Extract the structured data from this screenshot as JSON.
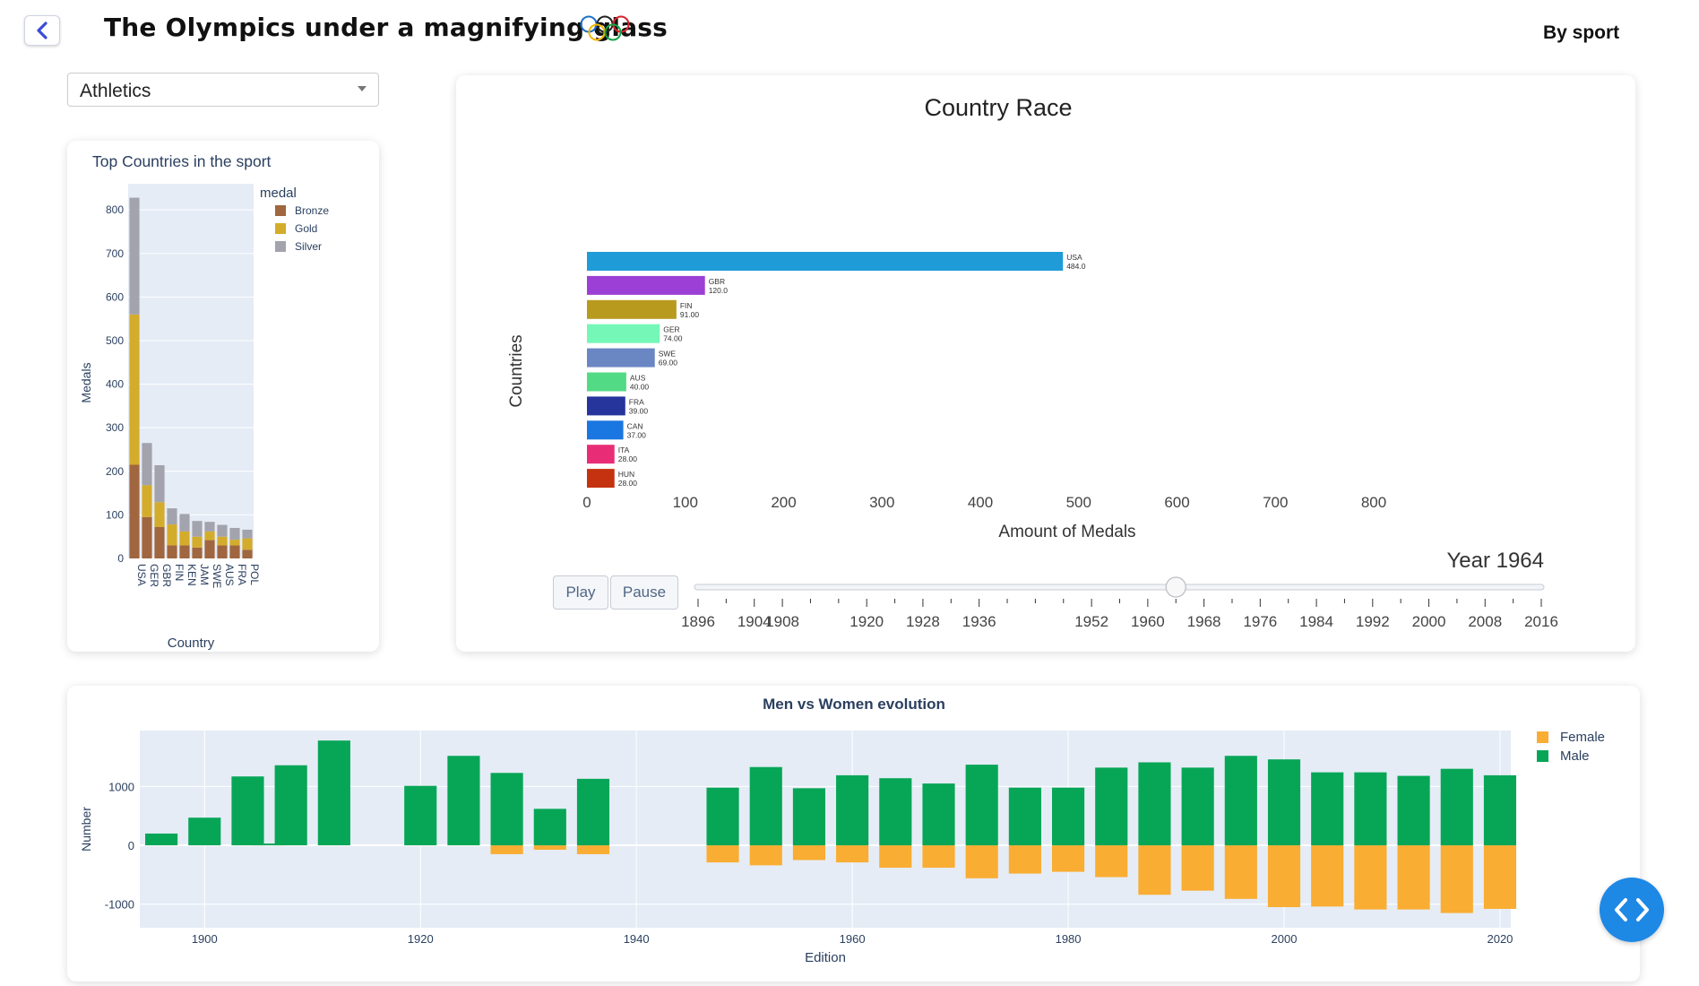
{
  "header": {
    "title": "The Olympics under a magnifying glass",
    "nav_label": "By sport",
    "back_icon": "chevron-left-icon",
    "logo_icon": "olympic-rings-icon"
  },
  "sport_select": {
    "value": "Athletics"
  },
  "top_countries": {
    "title": "Top Countries in the sport",
    "legend_title": "medal",
    "xlabel": "Country",
    "ylabel": "Medals",
    "y_ticks": [
      "0",
      "100",
      "200",
      "300",
      "400",
      "500",
      "600",
      "700",
      "800"
    ]
  },
  "race": {
    "title": "Country Race",
    "xlabel": "Amount of Medals",
    "ylabel": "Countries",
    "year_label": "Year 1964",
    "x_ticks": [
      "0",
      "100",
      "200",
      "300",
      "400",
      "500",
      "600",
      "700",
      "800"
    ],
    "play_label": "Play",
    "pause_label": "Pause",
    "slider_ticks": [
      "1896",
      "1904",
      "1908",
      "1920",
      "1928",
      "1936",
      "1952",
      "1960",
      "1968",
      "1976",
      "1984",
      "1992",
      "2000",
      "2008",
      "2016"
    ],
    "slider_value": "1964"
  },
  "gender": {
    "title": "Men vs Women evolution",
    "xlabel": "Edition",
    "ylabel": "Number",
    "y_ticks": [
      "1000",
      "0",
      "-1000"
    ],
    "x_ticks": [
      "1900",
      "1920",
      "1940",
      "1960",
      "1980",
      "2000",
      "2020"
    ]
  },
  "fab_icon": "code-icon",
  "colors": {
    "plot_bg": "#e5ecf6",
    "bronze": "#a0663f",
    "gold": "#d4ac2b",
    "silver": "#a3a3ad",
    "female": "#f9ad32",
    "male": "#07a657",
    "accent": "#1e88e5"
  },
  "chart_data": [
    {
      "type": "bar",
      "title": "Top Countries in the sport",
      "xlabel": "Country",
      "ylabel": "Medals",
      "ylim": [
        0,
        860
      ],
      "legend_title": "medal",
      "categories": [
        "USA",
        "GER",
        "GBR",
        "FIN",
        "KEN",
        "JAM",
        "SWE",
        "AUS",
        "FRA",
        "POL"
      ],
      "series": [
        {
          "name": "Bronze",
          "color": "#a0663f",
          "values": [
            215,
            95,
            72,
            30,
            30,
            25,
            42,
            30,
            30,
            20
          ]
        },
        {
          "name": "Gold",
          "color": "#d4ac2b",
          "values": [
            345,
            73,
            57,
            48,
            32,
            25,
            20,
            20,
            13,
            26
          ]
        },
        {
          "name": "Silver",
          "color": "#a3a3ad",
          "values": [
            268,
            97,
            85,
            37,
            40,
            36,
            22,
            27,
            27,
            20
          ]
        }
      ],
      "stacked": true,
      "legend": "right",
      "grid": true
    },
    {
      "type": "bar",
      "orientation": "horizontal",
      "title": "Country Race",
      "xlabel": "Amount of Medals",
      "ylabel": "Countries",
      "xlim": [
        0,
        800
      ],
      "year": "1964",
      "categories": [
        "USA",
        "GBR",
        "FIN",
        "GER",
        "SWE",
        "AUS",
        "FRA",
        "CAN",
        "ITA",
        "HUN"
      ],
      "values": [
        484,
        120,
        91,
        74,
        69,
        40,
        39,
        37,
        28,
        28
      ],
      "value_labels": [
        "484.0",
        "120.0",
        "91.00",
        "74.00",
        "69.00",
        "40.00",
        "39.00",
        "37.00",
        "28.00",
        "28.00"
      ],
      "colors": [
        "#1f9bd7",
        "#9c3fd6",
        "#b89a1f",
        "#74f7b7",
        "#6a87c4",
        "#53da84",
        "#25359c",
        "#1a76e0",
        "#e82d76",
        "#c4320f"
      ],
      "grid": false
    },
    {
      "type": "bar",
      "title": "Men vs Women evolution",
      "xlabel": "Edition",
      "ylabel": "Number",
      "xlim": [
        1894,
        2021
      ],
      "ylim": [
        -1400,
        1950
      ],
      "x": [
        1896,
        1900,
        1904,
        1906,
        1908,
        1912,
        1920,
        1924,
        1928,
        1932,
        1936,
        1948,
        1952,
        1956,
        1960,
        1964,
        1968,
        1972,
        1976,
        1980,
        1984,
        1988,
        1992,
        1996,
        2000,
        2004,
        2008,
        2012,
        2016,
        2020
      ],
      "series": [
        {
          "name": "Female",
          "color": "#f9ad32",
          "values": [
            0,
            0,
            0,
            0,
            0,
            0,
            0,
            0,
            -150,
            -75,
            -150,
            -290,
            -340,
            -250,
            -290,
            -380,
            -380,
            -560,
            -480,
            -450,
            -540,
            -840,
            -770,
            -910,
            -1050,
            -1040,
            -1090,
            -1090,
            -1150,
            -1080
          ]
        },
        {
          "name": "Male",
          "color": "#07a657",
          "values": [
            200,
            470,
            1170,
            30,
            1360,
            1780,
            1010,
            1520,
            1230,
            620,
            1130,
            980,
            1330,
            970,
            1190,
            1140,
            1050,
            1370,
            980,
            980,
            1320,
            1410,
            1320,
            1520,
            1460,
            1240,
            1240,
            1180,
            1300,
            1190
          ]
        }
      ],
      "legend": "right",
      "grid": true
    }
  ]
}
